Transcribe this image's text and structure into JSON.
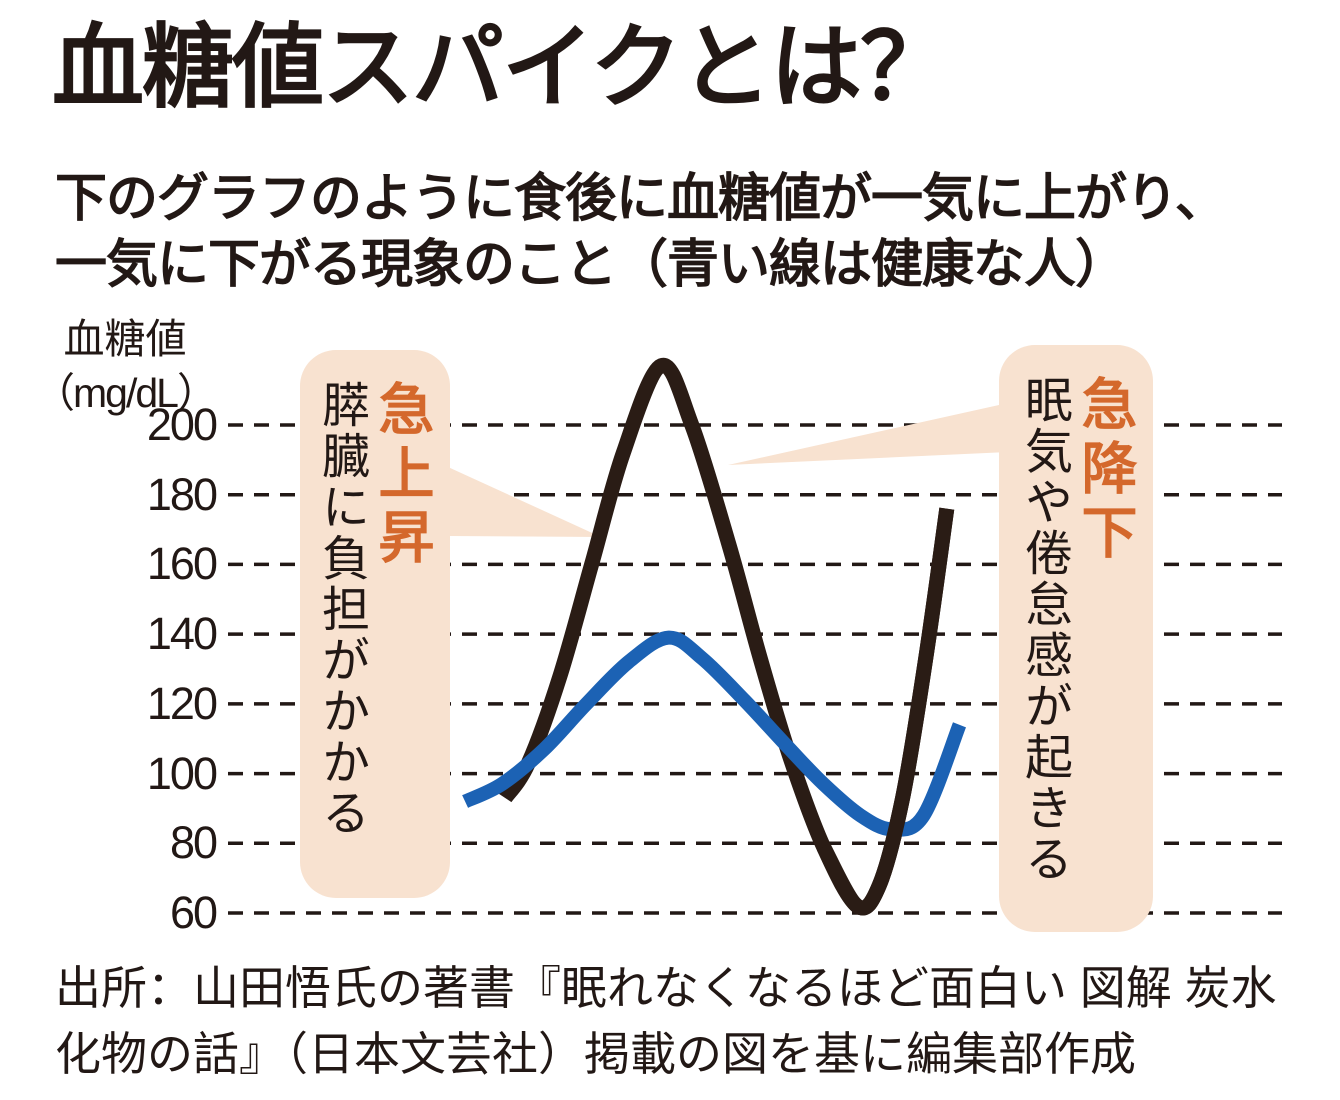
{
  "page": {
    "title": "血糖値スパイクとは？",
    "subtitle_line1": "下のグラフのように食後に血糖値が一気に上がり、",
    "subtitle_line2": "一気に下がる現象のこと（青い線は健康な人）",
    "source_line1": "出所：山田悟氏の著書『眠れなくなるほど面白い 図解 炭水",
    "source_line2": "化物の話』（日本文芸社）掲載の図を基に編集部作成"
  },
  "axis": {
    "label": "血糖値",
    "unit": "（mg/dL）",
    "ticks": [
      200,
      180,
      160,
      140,
      120,
      100,
      80,
      60
    ]
  },
  "annotations": {
    "left": {
      "headline": "急上昇",
      "body": "膵臓に負担がかかる"
    },
    "right": {
      "headline": "急降下",
      "body": "眠気や倦怠感が起きる"
    }
  },
  "colors": {
    "text": "#221815",
    "spike_line": "#2A1C15",
    "healthy_line": "#1C62B4",
    "gridline": "#221815",
    "callout_bg": "#F8E2D0",
    "callout_accent": "#D4682C"
  },
  "chart_data": {
    "type": "line",
    "title": "血糖値スパイクとは？",
    "xlabel": "",
    "ylabel": "血糖値（mg/dL）",
    "yticks": [
      200,
      180,
      160,
      140,
      120,
      100,
      80,
      60
    ],
    "ylim": [
      52,
      228
    ],
    "grid": "horizontal-dashed",
    "legend": "none（注釈：青い線は健康な人）",
    "series": [
      {
        "name": "黒い線（血糖値スパイクが起こる人）",
        "color": "#2A1C15",
        "points_x_fraction_vs_mgdl": [
          [
            0.263,
            93
          ],
          [
            0.285,
            103
          ],
          [
            0.315,
            128
          ],
          [
            0.345,
            160
          ],
          [
            0.375,
            192
          ],
          [
            0.411,
            217
          ],
          [
            0.44,
            200
          ],
          [
            0.475,
            166
          ],
          [
            0.505,
            133
          ],
          [
            0.534,
            104
          ],
          [
            0.565,
            79
          ],
          [
            0.597,
            62
          ],
          [
            0.618,
            68
          ],
          [
            0.64,
            93
          ],
          [
            0.662,
            133
          ],
          [
            0.682,
            176
          ]
        ]
      },
      {
        "name": "青い線（健康な人）",
        "color": "#1C62B4",
        "points_x_fraction_vs_mgdl": [
          [
            0.225,
            92
          ],
          [
            0.26,
            97
          ],
          [
            0.3,
            107
          ],
          [
            0.34,
            120
          ],
          [
            0.38,
            132
          ],
          [
            0.418,
            139
          ],
          [
            0.45,
            133
          ],
          [
            0.49,
            121
          ],
          [
            0.53,
            108
          ],
          [
            0.565,
            97
          ],
          [
            0.6,
            88
          ],
          [
            0.63,
            84
          ],
          [
            0.66,
            88
          ],
          [
            0.694,
            114
          ]
        ]
      }
    ],
    "callout_annotations": [
      {
        "headline": "急上昇",
        "body": "膵臓に負担がかかる",
        "points_at": "黒い線の急上昇部"
      },
      {
        "headline": "急降下",
        "body": "眠気や倦怠感が起きる",
        "points_at": "黒い線の急降下部"
      }
    ]
  }
}
